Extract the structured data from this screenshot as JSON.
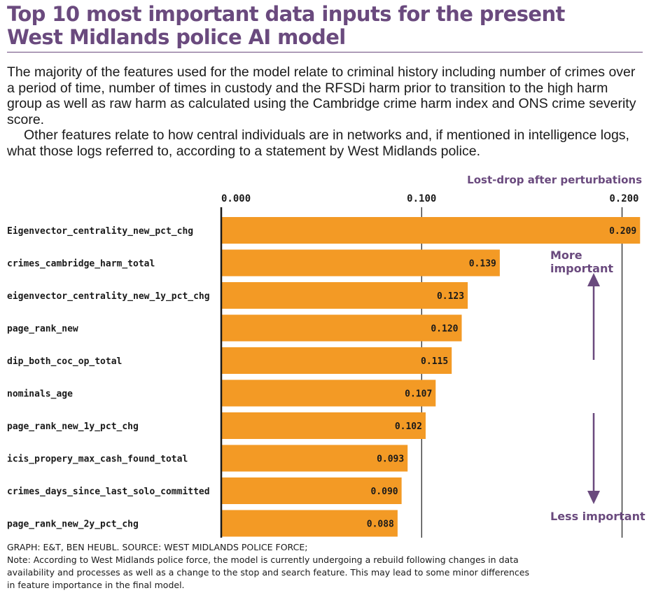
{
  "header": {
    "title_line1": "Top 10 most important data inputs for the present",
    "title_line2": "West Midlands police AI model",
    "paragraph1": "The majority of the features used for the model relate to criminal history including number of crimes over a period of time, number of times in custody and the RFSDi harm prior to transition to the high harm group as well as raw harm as calculated using the Cambridge crime harm index and ONS crime severity score.",
    "paragraph2": "Other features relate to how central individuals are in networks and, if mentioned in intelligence logs, what those logs referred to, according to a statement by West Midlands police."
  },
  "annotations": {
    "more_important": "More important",
    "less_important": "Less important"
  },
  "footer": {
    "credit": "GRAPH: E&T, BEN HEUBL.  SOURCE: WEST MIDLANDS POLICE FORCE;",
    "note": "Note:  According to West Midlands police force, the model is currently undergoing a rebuild following changes in data availability and processes as well as a change to the stop and search feature. This may lead to some minor differences in feature importance in the final model."
  },
  "colors": {
    "bar": "#f39a25",
    "accent": "#6a4a7e",
    "axis": "#1a1a1a"
  },
  "chart_data": {
    "type": "bar",
    "orientation": "horizontal",
    "title": "Top 10 most important data inputs for the present West Midlands police AI model",
    "xlabel": "Lost-drop after perturbations",
    "ylabel": "",
    "xlim": [
      0,
      0.209
    ],
    "x_ticks": [
      "0.000",
      "0.100",
      "0.200"
    ],
    "x_tick_values": [
      0,
      0.1,
      0.2
    ],
    "axis_position": "top",
    "grid": true,
    "categories": [
      "Eigenvector_centrality_new_pct_chg",
      "crimes_cambridge_harm_total",
      "eigenvector_centrality_new_1y_pct_chg",
      "page_rank_new",
      "dip_both_coc_op_total",
      "nominals_age",
      "page_rank_new_1y_pct_chg",
      "icis_propery_max_cash_found_total",
      "crimes_days_since_last_solo_committed",
      "page_rank_new_2y_pct_chg"
    ],
    "values": [
      0.209,
      0.139,
      0.123,
      0.12,
      0.115,
      0.107,
      0.102,
      0.093,
      0.09,
      0.088
    ],
    "data_labels": [
      "0.209",
      "0.139",
      "0.123",
      "0.120",
      "0.115",
      "0.107",
      "0.102",
      "0.093",
      "0.090",
      "0.088"
    ]
  }
}
